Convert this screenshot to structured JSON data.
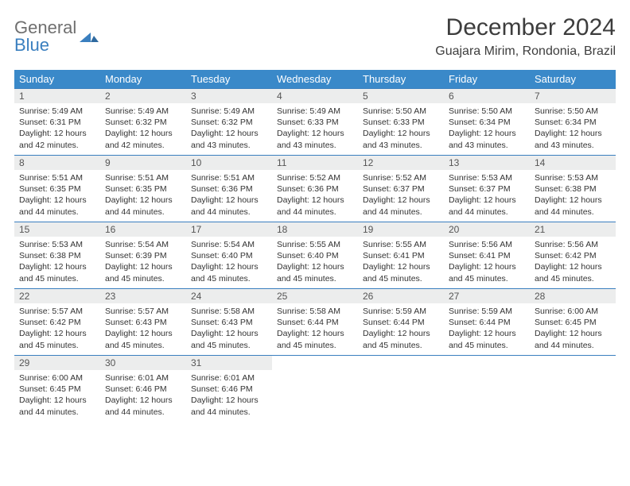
{
  "logo": {
    "word1": "General",
    "word2": "Blue"
  },
  "title": "December 2024",
  "location": "Guajara Mirim, Rondonia, Brazil",
  "colors": {
    "header_bg": "#3a89c9",
    "header_text": "#ffffff",
    "daynum_bg": "#eceded",
    "cell_border": "#3a7fbf",
    "logo_gray": "#6f6f6f",
    "logo_blue": "#3a7fbf"
  },
  "weekdays": [
    "Sunday",
    "Monday",
    "Tuesday",
    "Wednesday",
    "Thursday",
    "Friday",
    "Saturday"
  ],
  "weeks": [
    [
      {
        "n": "1",
        "sr": "5:49 AM",
        "ss": "6:31 PM",
        "dl": "12 hours and 42 minutes."
      },
      {
        "n": "2",
        "sr": "5:49 AM",
        "ss": "6:32 PM",
        "dl": "12 hours and 42 minutes."
      },
      {
        "n": "3",
        "sr": "5:49 AM",
        "ss": "6:32 PM",
        "dl": "12 hours and 43 minutes."
      },
      {
        "n": "4",
        "sr": "5:49 AM",
        "ss": "6:33 PM",
        "dl": "12 hours and 43 minutes."
      },
      {
        "n": "5",
        "sr": "5:50 AM",
        "ss": "6:33 PM",
        "dl": "12 hours and 43 minutes."
      },
      {
        "n": "6",
        "sr": "5:50 AM",
        "ss": "6:34 PM",
        "dl": "12 hours and 43 minutes."
      },
      {
        "n": "7",
        "sr": "5:50 AM",
        "ss": "6:34 PM",
        "dl": "12 hours and 43 minutes."
      }
    ],
    [
      {
        "n": "8",
        "sr": "5:51 AM",
        "ss": "6:35 PM",
        "dl": "12 hours and 44 minutes."
      },
      {
        "n": "9",
        "sr": "5:51 AM",
        "ss": "6:35 PM",
        "dl": "12 hours and 44 minutes."
      },
      {
        "n": "10",
        "sr": "5:51 AM",
        "ss": "6:36 PM",
        "dl": "12 hours and 44 minutes."
      },
      {
        "n": "11",
        "sr": "5:52 AM",
        "ss": "6:36 PM",
        "dl": "12 hours and 44 minutes."
      },
      {
        "n": "12",
        "sr": "5:52 AM",
        "ss": "6:37 PM",
        "dl": "12 hours and 44 minutes."
      },
      {
        "n": "13",
        "sr": "5:53 AM",
        "ss": "6:37 PM",
        "dl": "12 hours and 44 minutes."
      },
      {
        "n": "14",
        "sr": "5:53 AM",
        "ss": "6:38 PM",
        "dl": "12 hours and 44 minutes."
      }
    ],
    [
      {
        "n": "15",
        "sr": "5:53 AM",
        "ss": "6:38 PM",
        "dl": "12 hours and 45 minutes."
      },
      {
        "n": "16",
        "sr": "5:54 AM",
        "ss": "6:39 PM",
        "dl": "12 hours and 45 minutes."
      },
      {
        "n": "17",
        "sr": "5:54 AM",
        "ss": "6:40 PM",
        "dl": "12 hours and 45 minutes."
      },
      {
        "n": "18",
        "sr": "5:55 AM",
        "ss": "6:40 PM",
        "dl": "12 hours and 45 minutes."
      },
      {
        "n": "19",
        "sr": "5:55 AM",
        "ss": "6:41 PM",
        "dl": "12 hours and 45 minutes."
      },
      {
        "n": "20",
        "sr": "5:56 AM",
        "ss": "6:41 PM",
        "dl": "12 hours and 45 minutes."
      },
      {
        "n": "21",
        "sr": "5:56 AM",
        "ss": "6:42 PM",
        "dl": "12 hours and 45 minutes."
      }
    ],
    [
      {
        "n": "22",
        "sr": "5:57 AM",
        "ss": "6:42 PM",
        "dl": "12 hours and 45 minutes."
      },
      {
        "n": "23",
        "sr": "5:57 AM",
        "ss": "6:43 PM",
        "dl": "12 hours and 45 minutes."
      },
      {
        "n": "24",
        "sr": "5:58 AM",
        "ss": "6:43 PM",
        "dl": "12 hours and 45 minutes."
      },
      {
        "n": "25",
        "sr": "5:58 AM",
        "ss": "6:44 PM",
        "dl": "12 hours and 45 minutes."
      },
      {
        "n": "26",
        "sr": "5:59 AM",
        "ss": "6:44 PM",
        "dl": "12 hours and 45 minutes."
      },
      {
        "n": "27",
        "sr": "5:59 AM",
        "ss": "6:44 PM",
        "dl": "12 hours and 45 minutes."
      },
      {
        "n": "28",
        "sr": "6:00 AM",
        "ss": "6:45 PM",
        "dl": "12 hours and 44 minutes."
      }
    ],
    [
      {
        "n": "29",
        "sr": "6:00 AM",
        "ss": "6:45 PM",
        "dl": "12 hours and 44 minutes."
      },
      {
        "n": "30",
        "sr": "6:01 AM",
        "ss": "6:46 PM",
        "dl": "12 hours and 44 minutes."
      },
      {
        "n": "31",
        "sr": "6:01 AM",
        "ss": "6:46 PM",
        "dl": "12 hours and 44 minutes."
      },
      null,
      null,
      null,
      null
    ]
  ],
  "labels": {
    "sunrise": "Sunrise: ",
    "sunset": "Sunset: ",
    "daylight": "Daylight: "
  }
}
